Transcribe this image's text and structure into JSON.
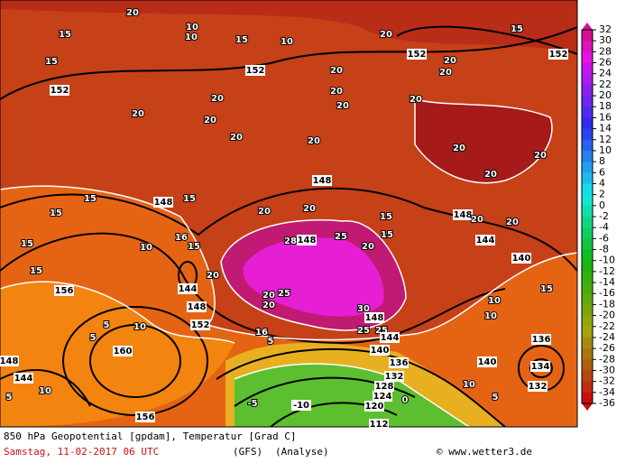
{
  "map": {
    "contour_labels": [
      "15",
      "15",
      "152",
      "20",
      "10",
      "10",
      "15",
      "10",
      "152",
      "20",
      "152",
      "20",
      "20",
      "15",
      "152",
      "20",
      "20",
      "20",
      "20",
      "20",
      "20",
      "20",
      "20",
      "20",
      "20",
      "20",
      "20",
      "148",
      "15",
      "15",
      "148",
      "15",
      "20",
      "20",
      "28",
      "148",
      "25",
      "20",
      "15",
      "15",
      "144",
      "148",
      "20",
      "20",
      "140",
      "15",
      "15",
      "10",
      "16",
      "15",
      "20",
      "144",
      "148",
      "156",
      "20",
      "25",
      "20",
      "30",
      "148",
      "152",
      "10",
      "5",
      "5",
      "160",
      "16",
      "5",
      "25",
      "25",
      "144",
      "140",
      "136",
      "132",
      "128",
      "124",
      "120",
      "112",
      "156",
      "144",
      "148",
      "10",
      "5",
      "10",
      "10",
      "140",
      "136",
      "134",
      "132",
      "15",
      "10",
      "5",
      "0",
      "-5",
      "-10"
    ]
  },
  "colorbar": {
    "ticks": [
      32,
      30,
      28,
      26,
      24,
      22,
      20,
      18,
      16,
      14,
      12,
      10,
      8,
      6,
      4,
      2,
      0,
      -2,
      -4,
      -6,
      -8,
      -10,
      -12,
      -14,
      -16,
      -18,
      -20,
      -22,
      -24,
      -26,
      -28,
      -30,
      -32,
      -34,
      -36
    ]
  },
  "footer": {
    "title": "850 hPa Geopotential [gpdam], Temperatur [Grad C]",
    "date": "Samstag, 11-02-2017  06 UTC",
    "model": "(GFS)",
    "run": "(Analyse)",
    "credit": "© www.wetter3.de"
  }
}
